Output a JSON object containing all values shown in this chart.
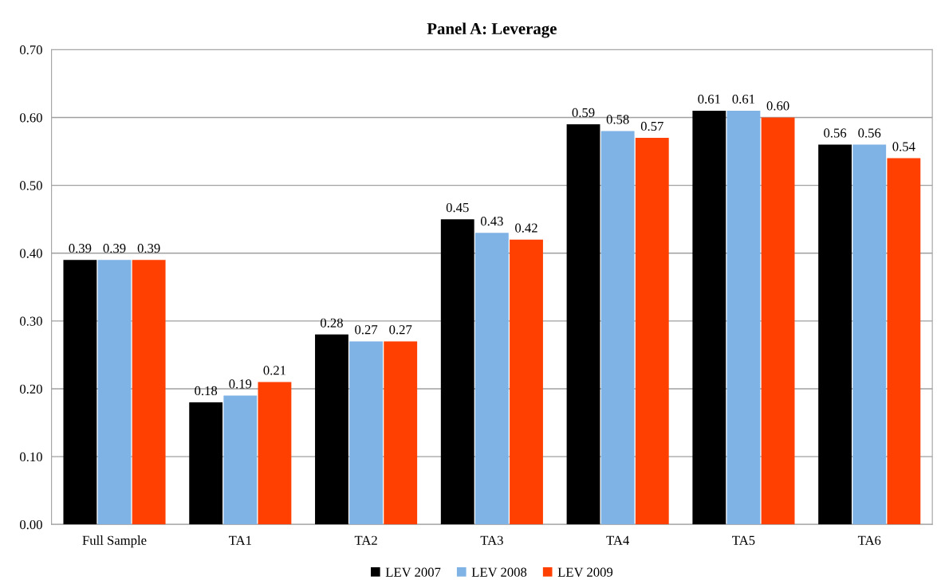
{
  "chart_data": {
    "type": "bar",
    "title": "Panel A: Leverage",
    "categories": [
      "Full Sample",
      "TA1",
      "TA2",
      "TA3",
      "TA4",
      "TA5",
      "TA6"
    ],
    "series": [
      {
        "name": "LEV 2007",
        "color": "#000000",
        "values": [
          0.39,
          0.18,
          0.28,
          0.45,
          0.59,
          0.61,
          0.56
        ],
        "value_labels": [
          "0.39",
          "0.18",
          "0.28",
          "0.45",
          "0.59",
          "0.61",
          "0.56"
        ]
      },
      {
        "name": "LEV 2008",
        "color": "#7fb2e5",
        "values": [
          0.39,
          0.19,
          0.27,
          0.43,
          0.58,
          0.61,
          0.56
        ],
        "value_labels": [
          "0.39",
          "0.19",
          "0.27",
          "0.43",
          "0.58",
          "0.61",
          "0.56"
        ]
      },
      {
        "name": "LEV 2009",
        "color": "#ff4000",
        "values": [
          0.39,
          0.21,
          0.27,
          0.42,
          0.57,
          0.6,
          0.54
        ],
        "value_labels": [
          "0.39",
          "0.21",
          "0.27",
          "0.42",
          "0.57",
          "0.60",
          "0.54"
        ]
      }
    ],
    "ylim": [
      0,
      0.7
    ],
    "yticks": [
      {
        "value": 0,
        "label": "0.00"
      },
      {
        "value": 0.1,
        "label": "0.10"
      },
      {
        "value": 0.2,
        "label": "0.20"
      },
      {
        "value": 0.3,
        "label": "0.30"
      },
      {
        "value": 0.4,
        "label": "0.40"
      },
      {
        "value": 0.5,
        "label": "0.50"
      },
      {
        "value": 0.6,
        "label": "0.60"
      },
      {
        "value": 0.7,
        "label": "0.70"
      }
    ],
    "grid": "y",
    "legend": "bottom"
  }
}
